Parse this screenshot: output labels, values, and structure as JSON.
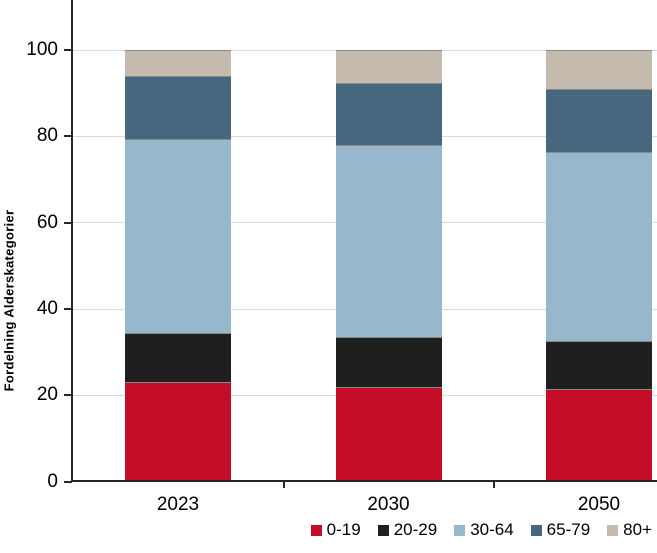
{
  "chart_data": {
    "type": "bar",
    "stacked": true,
    "title": "",
    "ylabel": "Fordelning Alderskategorier",
    "xlabel": "",
    "categories": [
      "2023",
      "2030",
      "2050"
    ],
    "series": [
      {
        "name": "0-19",
        "color": "#c40d28",
        "values": [
          23,
          22,
          21.5
        ]
      },
      {
        "name": "20-29",
        "color": "#1f1f1f",
        "values": [
          11.5,
          11.5,
          11
        ]
      },
      {
        "name": "30-64",
        "color": "#96b7cc",
        "values": [
          45,
          44.5,
          44
        ]
      },
      {
        "name": "65-79",
        "color": "#47677e",
        "values": [
          14.5,
          14.5,
          14.5
        ]
      },
      {
        "name": "80+",
        "color": "#c4bbae",
        "values": [
          6,
          7.5,
          9
        ]
      }
    ],
    "yticks": [
      0,
      20,
      40,
      60,
      80,
      100
    ],
    "ylim_visible": [
      0,
      111.6
    ],
    "grid": true,
    "gridline_color": "#d9d9d9",
    "axis_color": "#262626",
    "segment_divider_color": "#8a8a8a",
    "legend_position": "bottom-right",
    "legend_labels": [
      "0-19",
      "20-29",
      "30-64",
      "65-79",
      "80+"
    ]
  }
}
